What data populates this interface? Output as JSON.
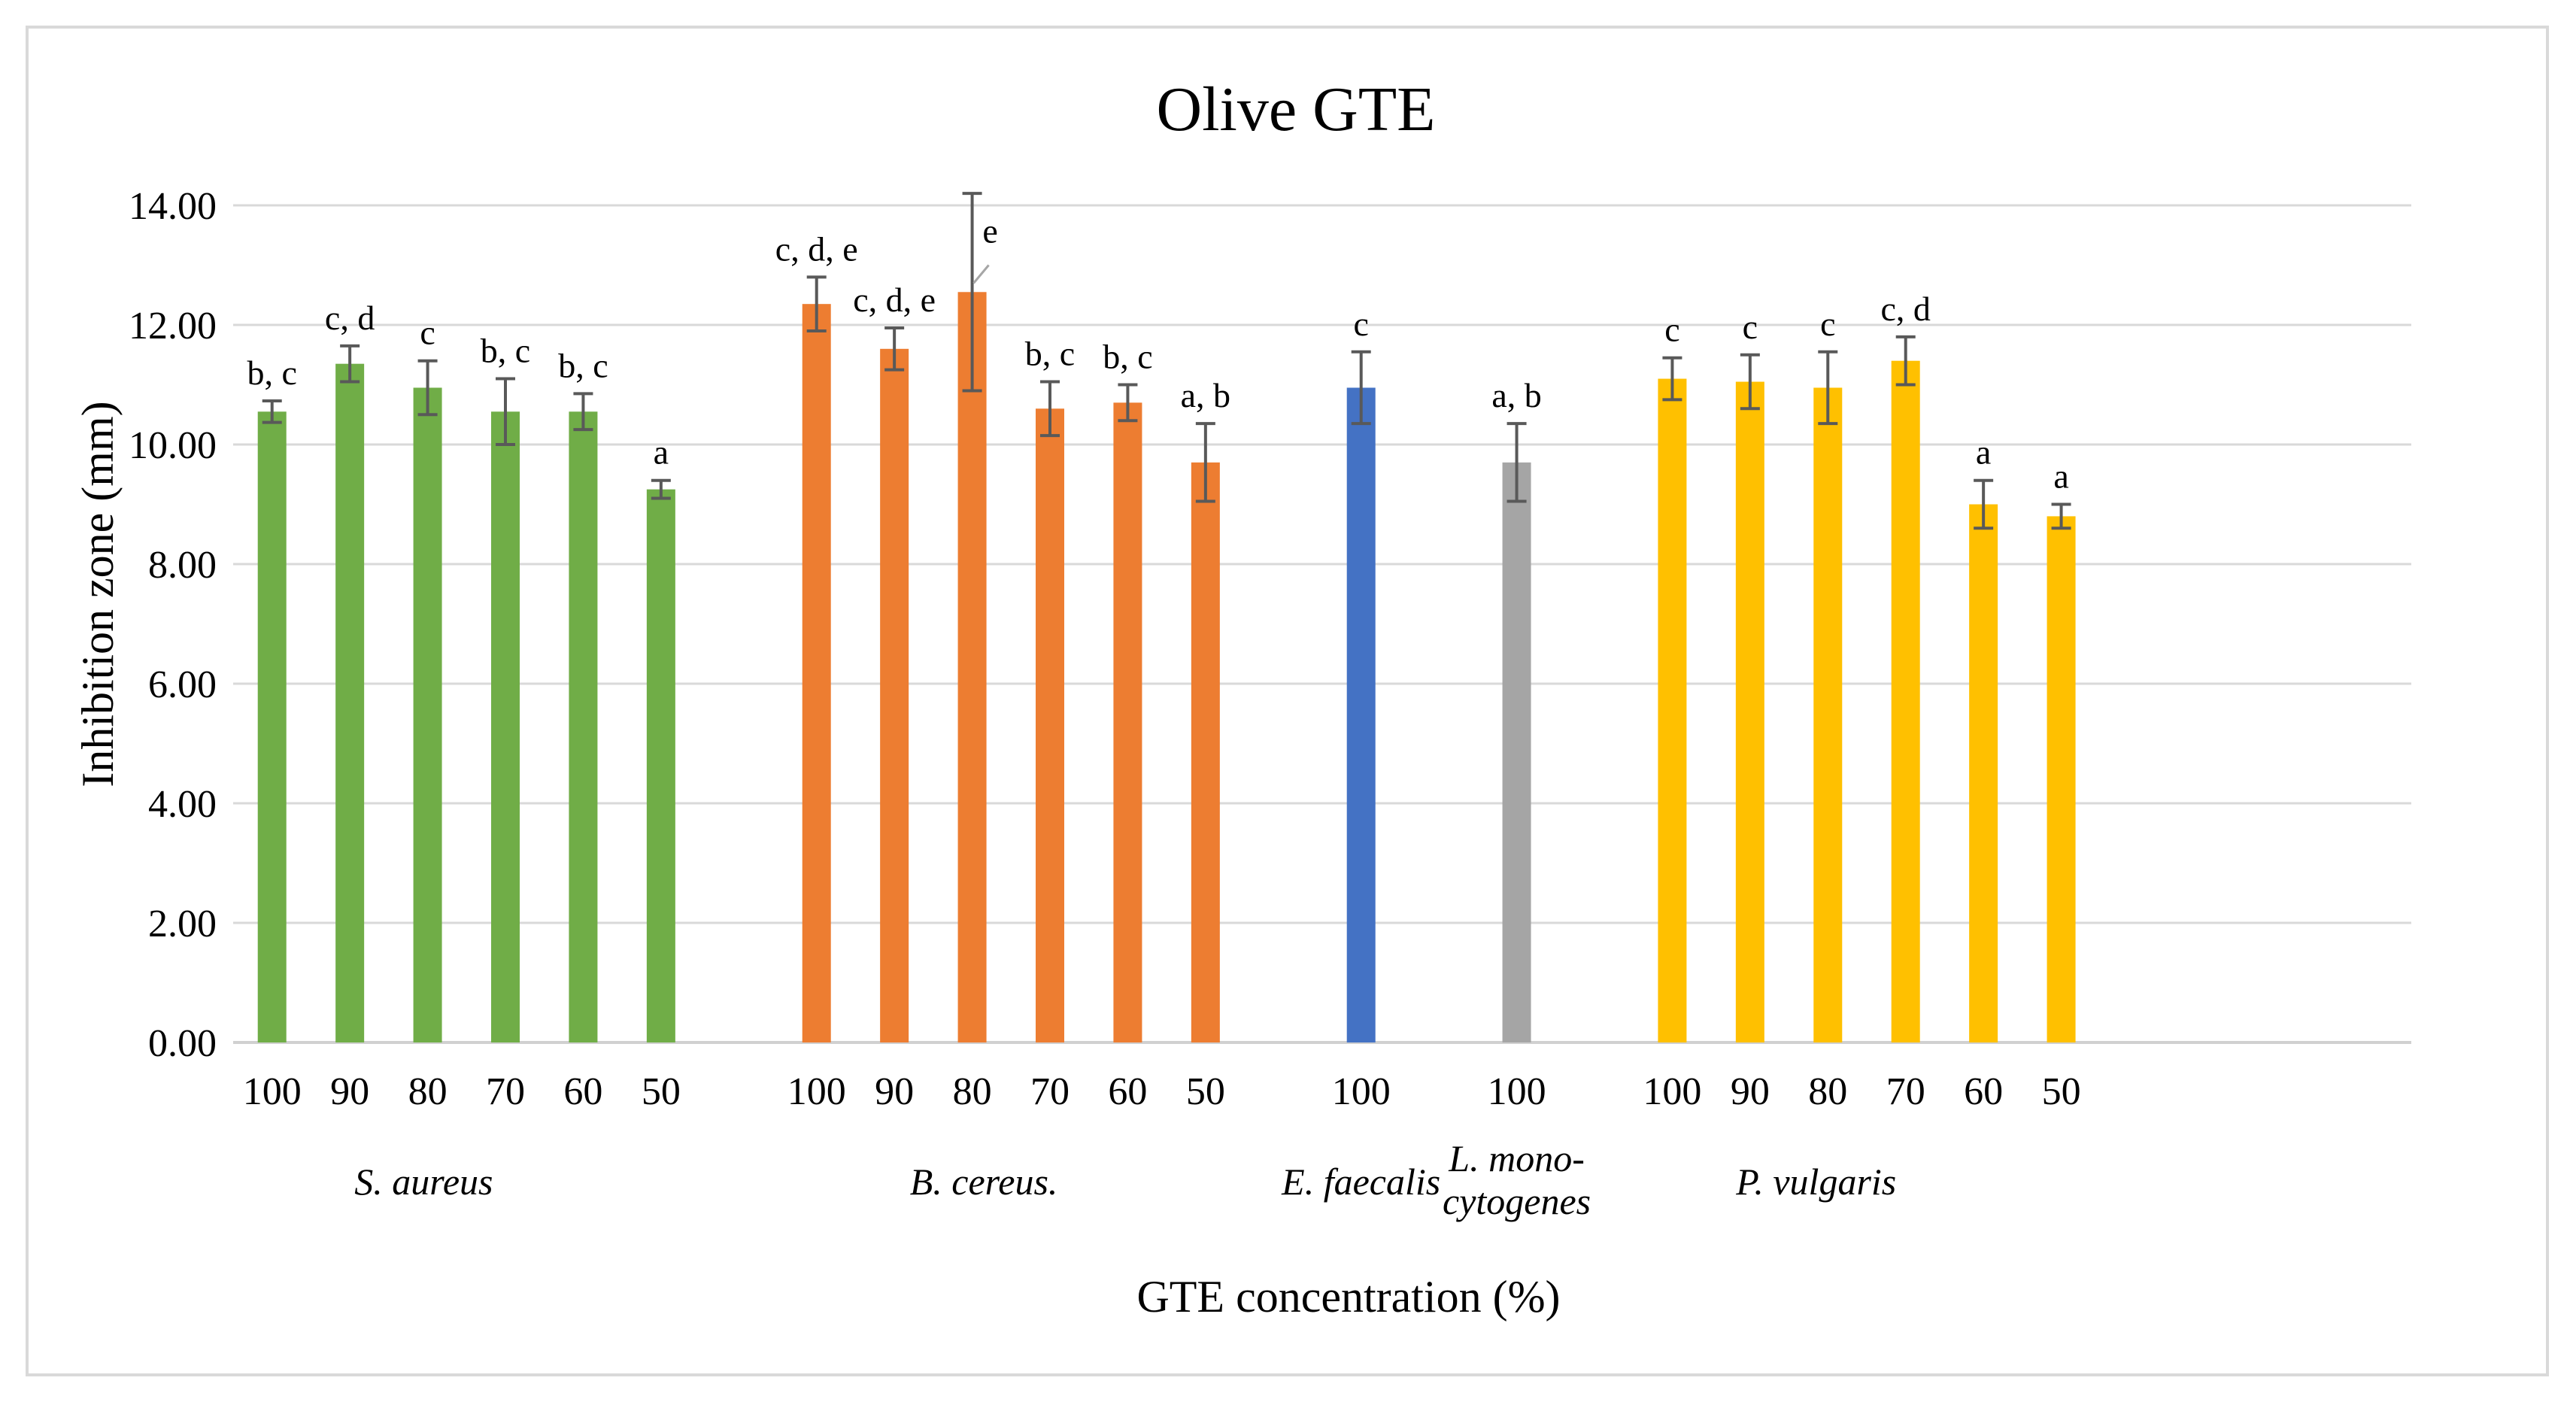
{
  "chart_data": {
    "type": "bar",
    "title": "Olive GTE",
    "xlabel": "GTE concentration (%)",
    "ylabel": "Inhibition zone (mm)",
    "ylim": [
      0,
      14
    ],
    "yticks": [
      0,
      2,
      4,
      6,
      8,
      10,
      12,
      14
    ],
    "ytick_labels": [
      "0.00",
      "2.00",
      "4.00",
      "6.00",
      "8.00",
      "10.00",
      "12.00",
      "14.00"
    ],
    "grid": true,
    "legend": "none",
    "series": [
      {
        "name": "S. aureus",
        "group_label": "S. aureus",
        "color": "#70ad47",
        "categories": [
          "100",
          "90",
          "80",
          "70",
          "60",
          "50"
        ],
        "values": [
          10.55,
          11.35,
          10.95,
          10.55,
          10.55,
          9.25
        ],
        "errors": [
          0.18,
          0.3,
          0.45,
          0.55,
          0.3,
          0.15
        ],
        "significance": [
          "b, c",
          "c, d",
          "c",
          "b, c",
          "b, c",
          "a"
        ]
      },
      {
        "name": "B. cereus.",
        "group_label": "B. cereus.",
        "color": "#ed7d31",
        "categories": [
          "100",
          "90",
          "80",
          "70",
          "60",
          "50"
        ],
        "values": [
          12.35,
          11.6,
          12.55,
          10.6,
          10.7,
          9.7
        ],
        "errors": [
          0.45,
          0.35,
          1.65,
          0.45,
          0.3,
          0.65
        ],
        "significance": [
          "c, d, e",
          "c, d, e",
          "e",
          "b, c",
          "b, c",
          "a, b"
        ]
      },
      {
        "name": "E. faecalis",
        "group_label": "E. faecalis",
        "color": "#4472c4",
        "categories": [
          "100"
        ],
        "values": [
          10.95
        ],
        "errors": [
          0.6
        ],
        "significance": [
          "c"
        ]
      },
      {
        "name": "L. monocytogenes",
        "group_label": [
          "L. mono-",
          "cytogenes"
        ],
        "color": "#a5a5a5",
        "categories": [
          "100"
        ],
        "values": [
          9.7
        ],
        "errors": [
          0.65
        ],
        "significance": [
          "a, b"
        ]
      },
      {
        "name": "P. vulgaris",
        "group_label": "P. vulgaris",
        "color": "#ffc000",
        "categories": [
          "100",
          "90",
          "80",
          "70",
          "60",
          "50"
        ],
        "values": [
          11.1,
          11.05,
          10.95,
          11.4,
          9.0,
          8.8
        ],
        "errors": [
          0.35,
          0.45,
          0.6,
          0.4,
          0.4,
          0.2
        ],
        "significance": [
          "c",
          "c",
          "c",
          "c, d",
          "a",
          "a"
        ]
      }
    ]
  }
}
